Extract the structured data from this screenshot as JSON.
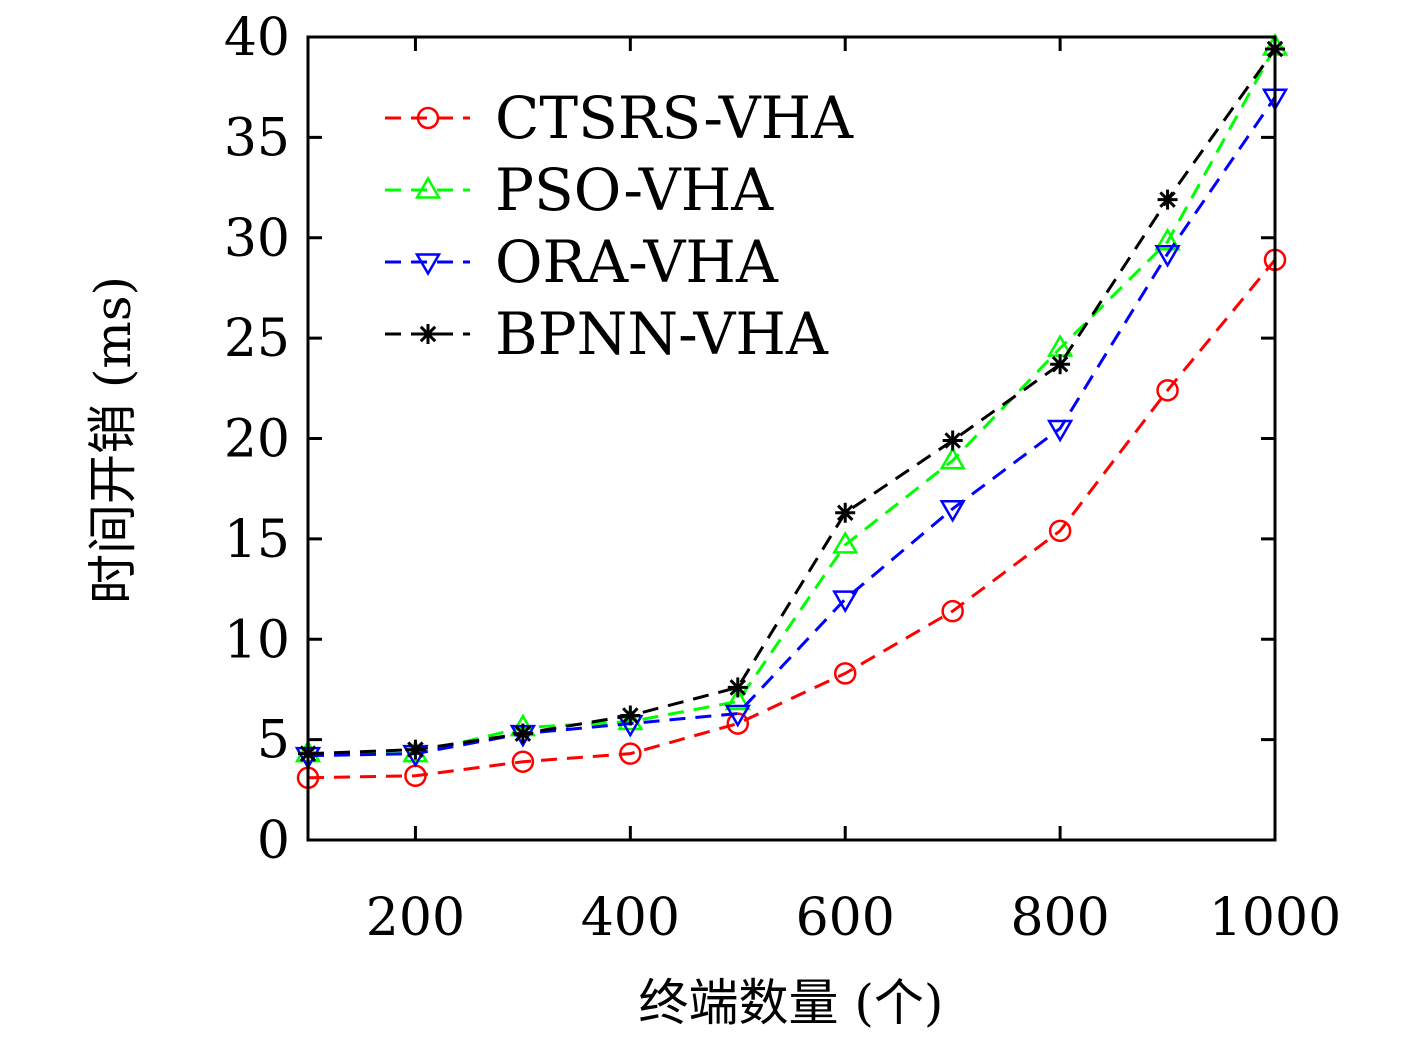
{
  "chart_data": {
    "type": "line",
    "xlabel": "终端数量 (个)",
    "ylabel": "时间开销 (ms)",
    "xlim": [
      100,
      1000
    ],
    "ylim": [
      0,
      40
    ],
    "xticks": [
      200,
      400,
      600,
      800,
      1000
    ],
    "yticks": [
      0,
      5,
      10,
      15,
      20,
      25,
      30,
      35,
      40
    ],
    "grid": false,
    "legend_position": "top-left",
    "x": [
      100,
      200,
      300,
      400,
      500,
      600,
      700,
      800,
      900,
      1000
    ],
    "series": [
      {
        "name": "CTSRS-VHA",
        "color": "#ff0000",
        "marker": "circle",
        "values": [
          3.1,
          3.2,
          3.9,
          4.3,
          5.8,
          8.3,
          11.4,
          15.4,
          22.4,
          28.9
        ]
      },
      {
        "name": "PSO-VHA",
        "color": "#00ff00",
        "marker": "triangle-up",
        "values": [
          4.3,
          4.3,
          5.6,
          5.9,
          6.9,
          14.7,
          18.9,
          24.5,
          29.8,
          39.5
        ]
      },
      {
        "name": "ORA-VHA",
        "color": "#0000ff",
        "marker": "triangle-down",
        "values": [
          4.2,
          4.3,
          5.3,
          5.8,
          6.3,
          12.0,
          16.5,
          20.5,
          29.2,
          37.0
        ]
      },
      {
        "name": "BPNN-VHA",
        "color": "#000000",
        "marker": "star",
        "values": [
          4.3,
          4.5,
          5.3,
          6.2,
          7.6,
          16.3,
          19.9,
          23.7,
          31.9,
          39.4
        ]
      }
    ]
  }
}
